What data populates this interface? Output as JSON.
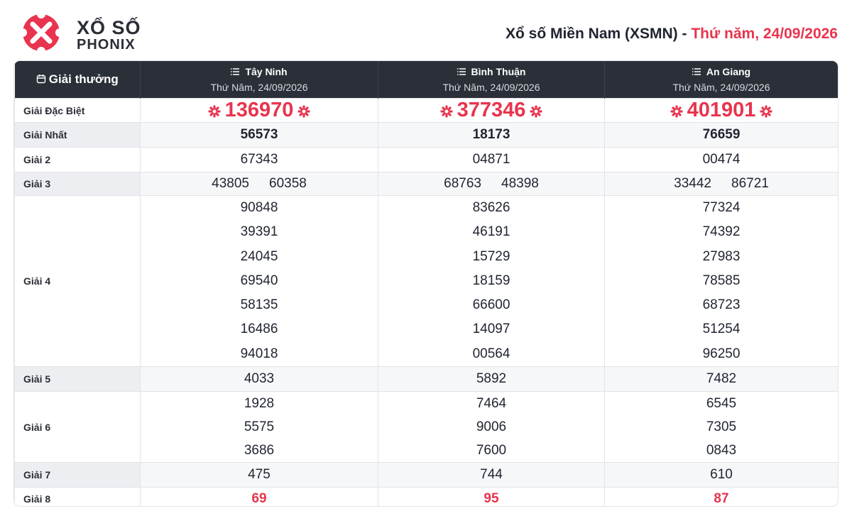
{
  "header": {
    "logo_line1": "XỔ SỐ",
    "logo_line2": "PHONIX",
    "title": "Xổ số Miền Nam (XSMN) -",
    "date": "Thứ năm, 24/09/2026"
  },
  "table": {
    "corner": "Giải thưởng",
    "columns": [
      {
        "name": "Tây Ninh",
        "date": "Thứ Năm, 24/09/2026"
      },
      {
        "name": "Bình Thuận",
        "date": "Thứ Năm, 24/09/2026"
      },
      {
        "name": "An Giang",
        "date": "Thứ Năm, 24/09/2026"
      }
    ],
    "rows": [
      {
        "label": "Giải Đặc Biệt",
        "values": [
          [
            "136970"
          ],
          [
            "377346"
          ],
          [
            "401901"
          ]
        ]
      },
      {
        "label": "Giải Nhất",
        "values": [
          [
            "56573"
          ],
          [
            "18173"
          ],
          [
            "76659"
          ]
        ]
      },
      {
        "label": "Giải 2",
        "values": [
          [
            "67343"
          ],
          [
            "04871"
          ],
          [
            "00474"
          ]
        ]
      },
      {
        "label": "Giải 3",
        "values": [
          [
            "43805",
            "60358"
          ],
          [
            "68763",
            "48398"
          ],
          [
            "33442",
            "86721"
          ]
        ]
      },
      {
        "label": "Giải 4",
        "values": [
          [
            "90848",
            "39391",
            "24045",
            "69540",
            "58135",
            "16486",
            "94018"
          ],
          [
            "83626",
            "46191",
            "15729",
            "18159",
            "66600",
            "14097",
            "00564"
          ],
          [
            "77324",
            "74392",
            "27983",
            "78585",
            "68723",
            "51254",
            "96250"
          ]
        ]
      },
      {
        "label": "Giải 5",
        "values": [
          [
            "4033"
          ],
          [
            "5892"
          ],
          [
            "7482"
          ]
        ]
      },
      {
        "label": "Giải 6",
        "values": [
          [
            "1928",
            "5575",
            "3686"
          ],
          [
            "7464",
            "9006",
            "7600"
          ],
          [
            "6545",
            "7305",
            "0843"
          ]
        ]
      },
      {
        "label": "Giải 7",
        "values": [
          [
            "475"
          ],
          [
            "744"
          ],
          [
            "610"
          ]
        ]
      },
      {
        "label": "Giải 8",
        "values": [
          [
            "69"
          ],
          [
            "95"
          ],
          [
            "87"
          ]
        ]
      }
    ]
  }
}
